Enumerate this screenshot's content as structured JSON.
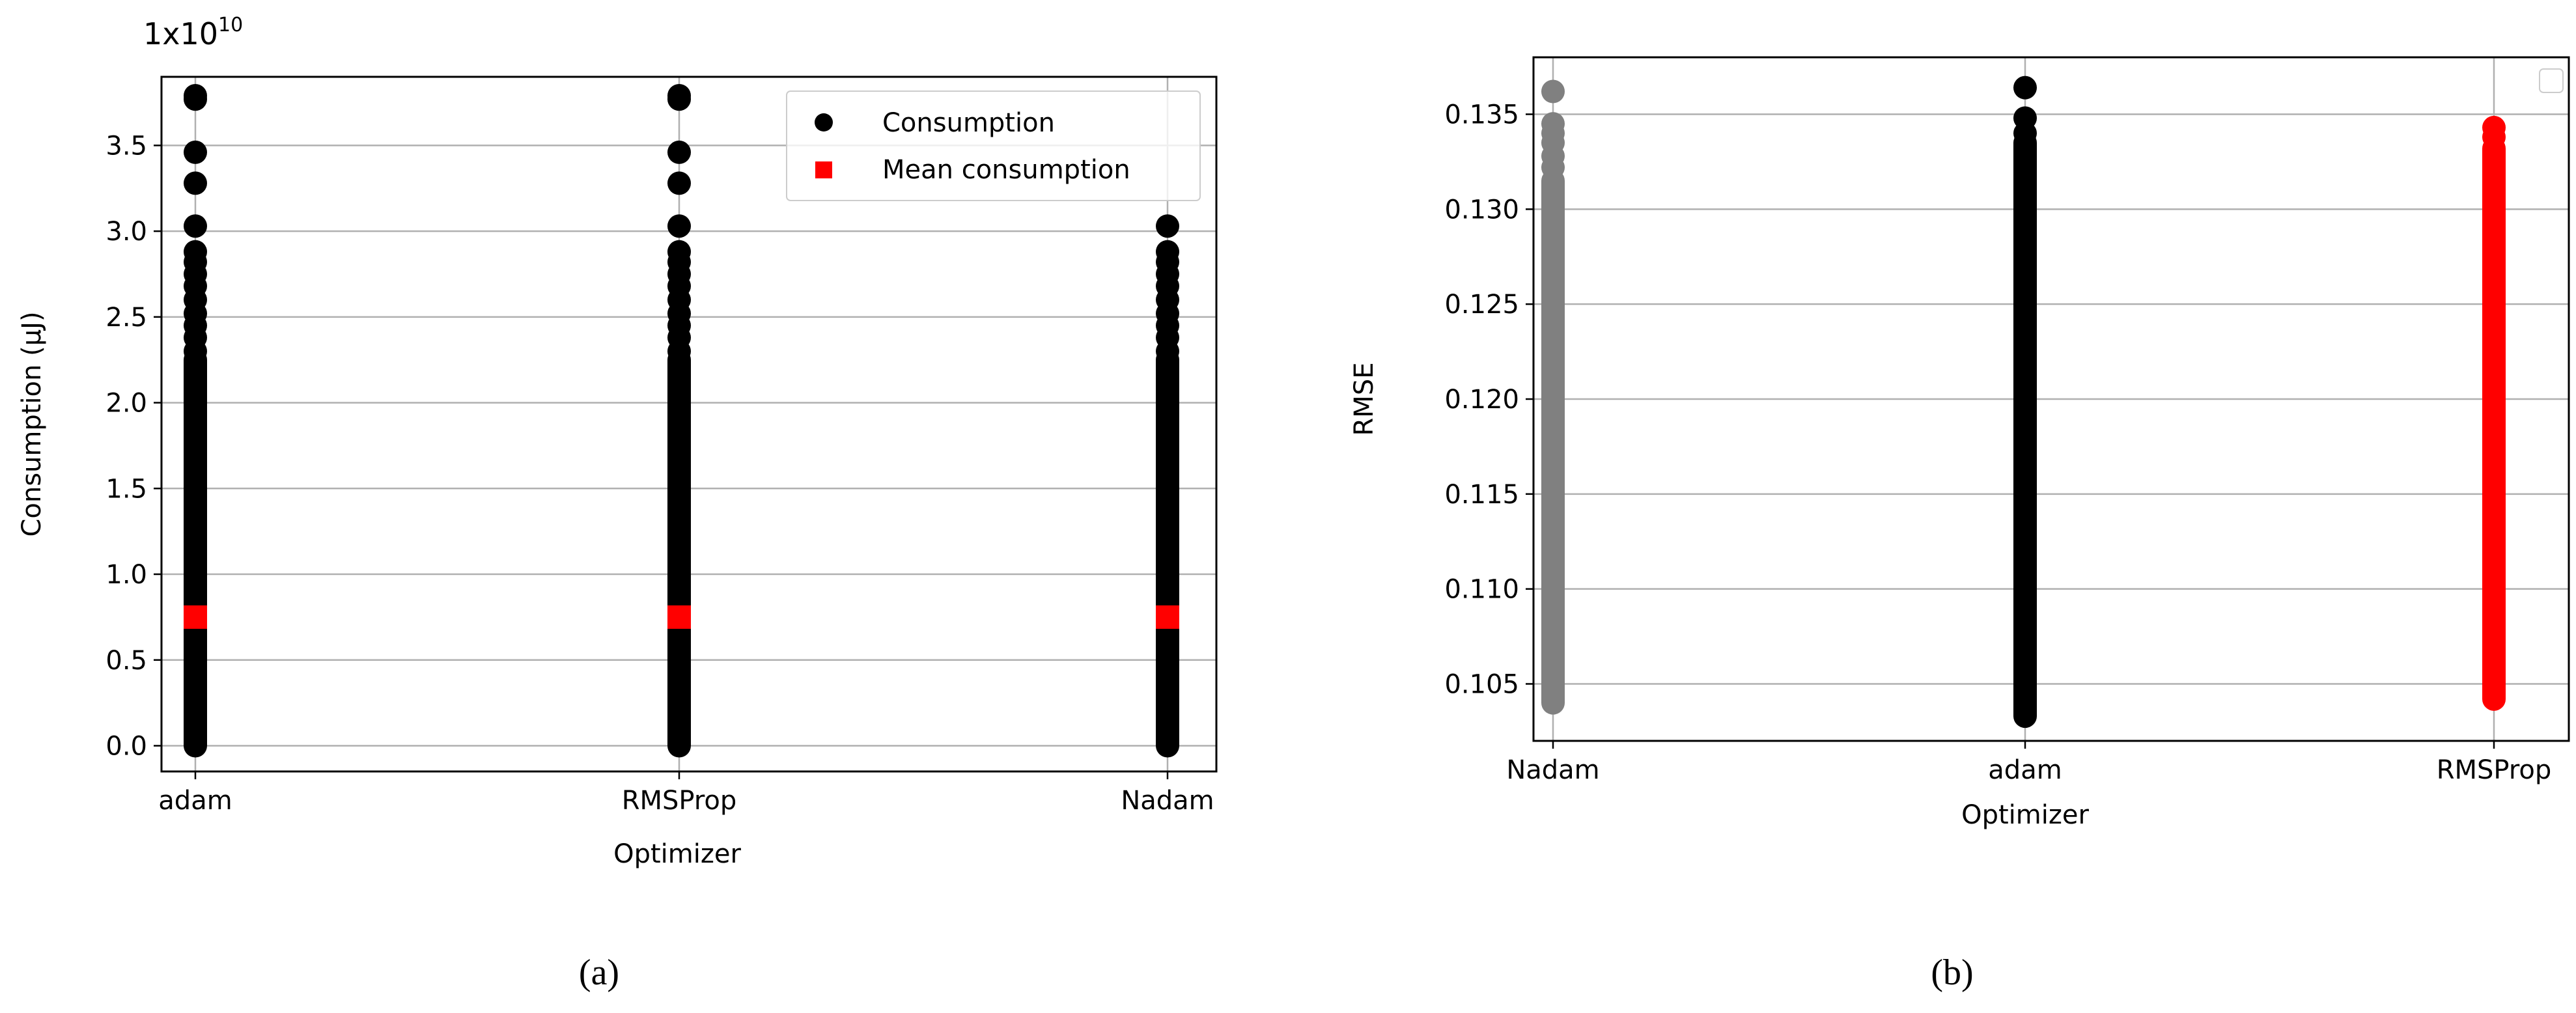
{
  "chart_data": [
    {
      "type": "scatter",
      "caption": "(a)",
      "xlabel": "Optimizer",
      "ylabel": "Consumption (µJ)",
      "offset_text": {
        "base": "1x10",
        "exponent": "10"
      },
      "categories": [
        "adam",
        "RMSProp",
        "Nadam"
      ],
      "ylim": [
        -0.15,
        3.9
      ],
      "yticks": [
        0.0,
        0.5,
        1.0,
        1.5,
        2.0,
        2.5,
        3.0,
        3.5
      ],
      "ytick_labels": [
        "0.0",
        "0.5",
        "1.0",
        "1.5",
        "2.0",
        "2.5",
        "3.0",
        "3.5"
      ],
      "grid": true,
      "legend": {
        "position": "top-right",
        "entries": [
          "Consumption",
          "Mean consumption"
        ]
      },
      "series": [
        {
          "name": "Consumption",
          "color": "#000000",
          "marker": "circle",
          "points": {
            "adam": {
              "dense_range": [
                0.0,
                2.25
              ],
              "sparse": [
                2.3,
                2.38,
                2.45,
                2.52,
                2.6,
                2.68,
                2.75,
                2.82,
                2.88,
                3.03,
                3.28,
                3.46,
                3.77,
                3.79
              ]
            },
            "RMSProp": {
              "dense_range": [
                0.0,
                2.25
              ],
              "sparse": [
                2.3,
                2.38,
                2.45,
                2.52,
                2.6,
                2.68,
                2.75,
                2.82,
                2.88,
                3.03,
                3.28,
                3.46,
                3.77,
                3.79
              ]
            },
            "Nadam": {
              "dense_range": [
                0.0,
                2.25
              ],
              "sparse": [
                2.3,
                2.38,
                2.45,
                2.52,
                2.6,
                2.68,
                2.75,
                2.82,
                2.88,
                3.03
              ]
            }
          }
        },
        {
          "name": "Mean consumption",
          "color": "#ff0000",
          "marker": "square",
          "values": {
            "adam": 0.75,
            "RMSProp": 0.75,
            "Nadam": 0.75
          }
        }
      ]
    },
    {
      "type": "scatter",
      "caption": "(b)",
      "xlabel": "Optimizer",
      "ylabel": "RMSE",
      "categories": [
        "Nadam",
        "adam",
        "RMSProp"
      ],
      "ylim": [
        0.102,
        0.138
      ],
      "yticks": [
        0.105,
        0.11,
        0.115,
        0.12,
        0.125,
        0.13,
        0.135
      ],
      "ytick_labels": [
        "0.105",
        "0.110",
        "0.115",
        "0.120",
        "0.125",
        "0.130",
        "0.135"
      ],
      "grid": true,
      "legend": {
        "position": "top-right",
        "entries": []
      },
      "series": [
        {
          "color": "#808080",
          "category": "Nadam",
          "dense_range": [
            0.104,
            0.1315
          ],
          "sparse": [
            0.1322,
            0.1328,
            0.1335,
            0.134,
            0.1345,
            0.1362
          ]
        },
        {
          "color": "#000000",
          "category": "adam",
          "dense_range": [
            0.1033,
            0.1335
          ],
          "sparse": [
            0.134,
            0.1348,
            0.1364
          ]
        },
        {
          "color": "#ff0000",
          "category": "RMSProp",
          "dense_range": [
            0.1042,
            0.1332
          ],
          "sparse": [
            0.1338,
            0.1343
          ]
        }
      ]
    }
  ]
}
